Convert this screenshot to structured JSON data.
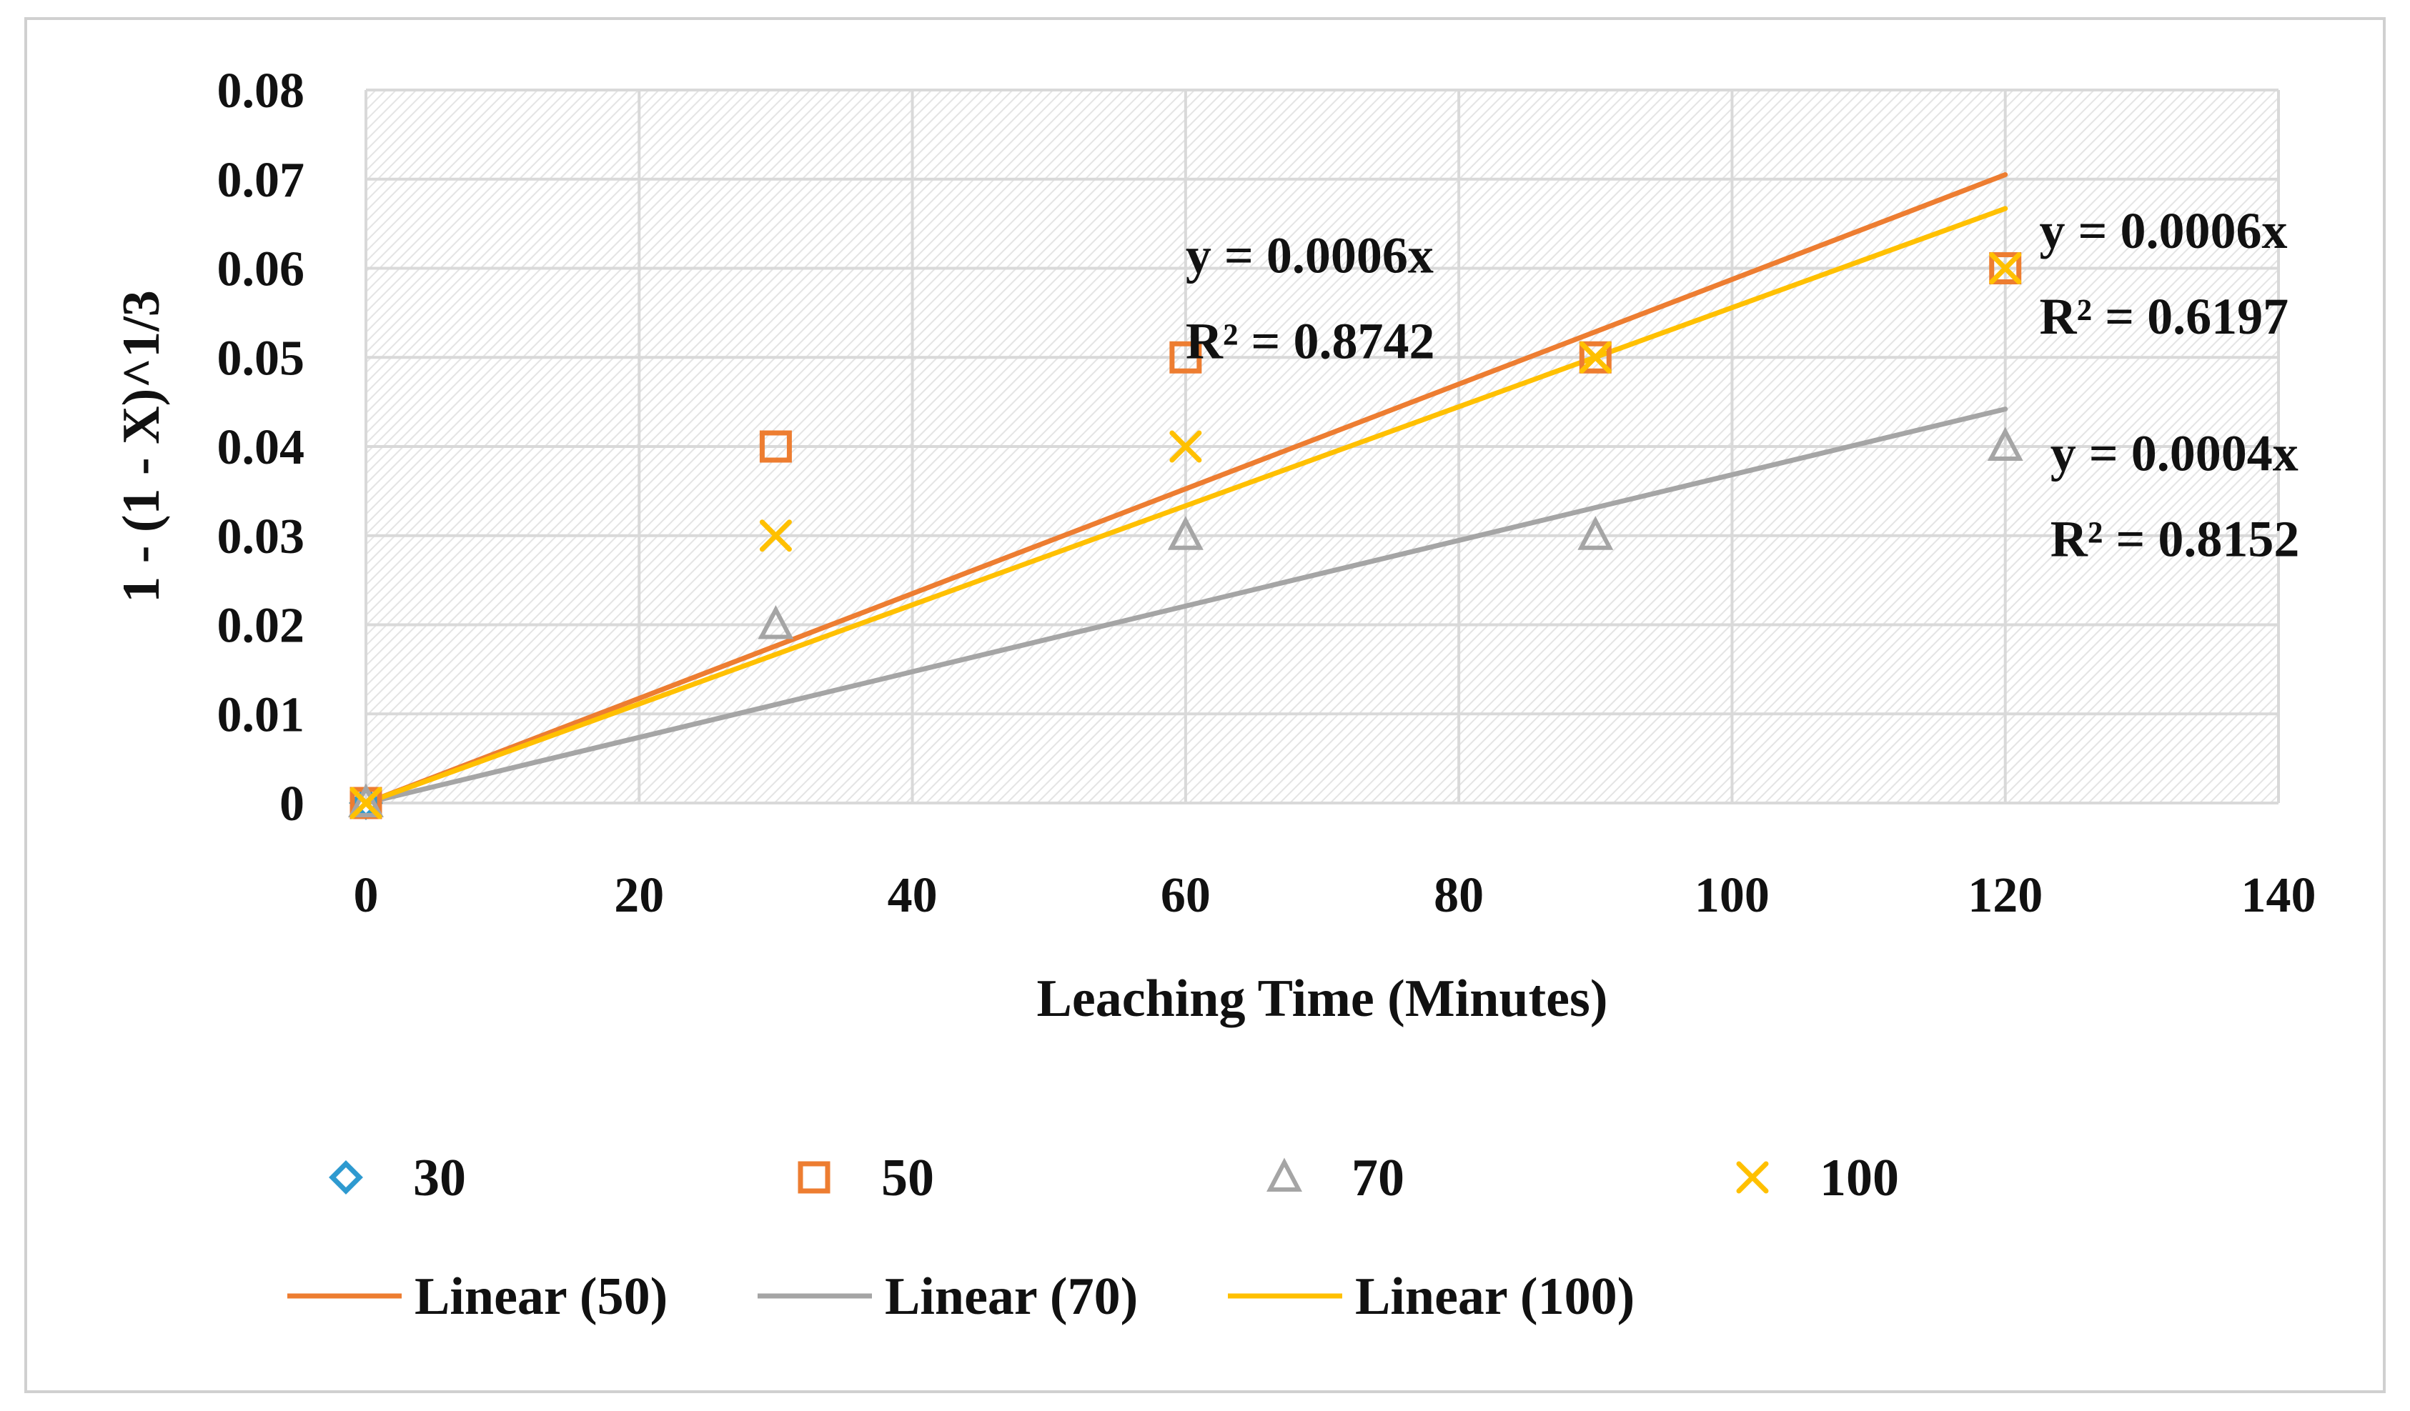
{
  "chart_data": {
    "type": "scatter",
    "title": "",
    "xlabel": "Leaching Time (Minutes)",
    "ylabel": "1 - (1 - X)^1/3",
    "xlim": [
      0,
      140
    ],
    "ylim": [
      0,
      0.08
    ],
    "x_ticks": [
      0,
      20,
      40,
      60,
      80,
      100,
      120,
      140
    ],
    "y_ticks": [
      0,
      0.01,
      0.02,
      0.03,
      0.04,
      0.05,
      0.06,
      0.07,
      0.08
    ],
    "x_tick_labels": [
      "0",
      "20",
      "40",
      "60",
      "80",
      "100",
      "120",
      "140"
    ],
    "y_tick_labels": [
      "0",
      "0.01",
      "0.02",
      "0.03",
      "0.04",
      "0.05",
      "0.06",
      "0.07",
      "0.08"
    ],
    "grid": true,
    "plot_background": "hatched light gray",
    "legend_position": "bottom",
    "series": [
      {
        "name": "30",
        "marker": "diamond",
        "color": "#2E9AD0",
        "x": [
          0
        ],
        "y": [
          0
        ]
      },
      {
        "name": "50",
        "marker": "square",
        "color": "#ED7D31",
        "x": [
          0,
          30,
          60,
          90,
          120
        ],
        "y": [
          0,
          0.04,
          0.05,
          0.05,
          0.06
        ]
      },
      {
        "name": "70",
        "marker": "triangle",
        "color": "#A5A5A5",
        "x": [
          0,
          30,
          60,
          90,
          120
        ],
        "y": [
          0,
          0.02,
          0.03,
          0.03,
          0.04
        ]
      },
      {
        "name": "100",
        "marker": "x",
        "color": "#FFC000",
        "x": [
          0,
          30,
          60,
          90,
          120
        ],
        "y": [
          0,
          0.03,
          0.04,
          0.05,
          0.06
        ]
      }
    ],
    "trendlines": [
      {
        "name": "Linear (50)",
        "color": "#ED7D31",
        "x_start": 0,
        "y_start": 0,
        "x_end": 120,
        "y_end": 0.0705
      },
      {
        "name": "Linear (70)",
        "color": "#A5A5A5",
        "x_start": 0,
        "y_start": 0,
        "x_end": 120,
        "y_end": 0.0442
      },
      {
        "name": "Linear (100)",
        "color": "#FFC000",
        "x_start": 0,
        "y_start": 0,
        "x_end": 120,
        "y_end": 0.0667
      }
    ],
    "annotations": [
      {
        "lines": [
          "y = 0.0006x",
          "R² = 0.8742"
        ],
        "anchor_x": 60,
        "anchor_y": 0.0595
      },
      {
        "lines": [
          "y = 0.0006x",
          "R² = 0.6197"
        ],
        "anchor_x": 122.5,
        "anchor_y": 0.0623
      },
      {
        "lines": [
          "y = 0.0004x",
          "R² = 0.8152"
        ],
        "anchor_x": 123.3,
        "anchor_y": 0.0373
      }
    ],
    "legend_items": [
      {
        "label": "30",
        "symbol": "diamond",
        "color": "#2E9AD0"
      },
      {
        "label": "50",
        "symbol": "square",
        "color": "#ED7D31"
      },
      {
        "label": "70",
        "symbol": "triangle",
        "color": "#A5A5A5"
      },
      {
        "label": "100",
        "symbol": "x",
        "color": "#FFC000"
      },
      {
        "label": "Linear (50)",
        "symbol": "line",
        "color": "#ED7D31"
      },
      {
        "label": "Linear (70)",
        "symbol": "line",
        "color": "#A5A5A5"
      },
      {
        "label": "Linear (100)",
        "symbol": "line",
        "color": "#FFC000"
      }
    ]
  }
}
